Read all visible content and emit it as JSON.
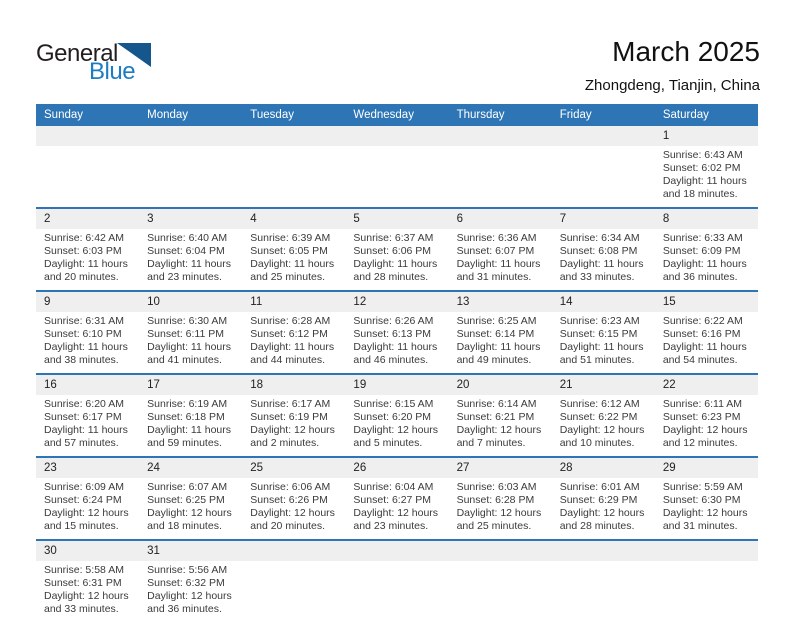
{
  "logo": {
    "general": "General",
    "blue": "Blue"
  },
  "header": {
    "title": "March 2025",
    "subtitle": "Zhongdeng, Tianjin, China"
  },
  "labels": {
    "sunrise": "Sunrise:",
    "sunset": "Sunset:",
    "daylight": "Daylight:"
  },
  "colors": {
    "header_blue": "#2E75B6",
    "band_gray": "#EFEFEF",
    "logo_blue": "#1E7CC2",
    "logo_triangle": "#15568D",
    "text_dark": "#3B3B3B"
  },
  "weekdays": [
    "Sunday",
    "Monday",
    "Tuesday",
    "Wednesday",
    "Thursday",
    "Friday",
    "Saturday"
  ],
  "weeks": [
    [
      null,
      null,
      null,
      null,
      null,
      null,
      {
        "day": "1",
        "sunrise": "6:43 AM",
        "sunset": "6:02 PM",
        "daylight": "11 hours and 18 minutes."
      }
    ],
    [
      {
        "day": "2",
        "sunrise": "6:42 AM",
        "sunset": "6:03 PM",
        "daylight": "11 hours and 20 minutes."
      },
      {
        "day": "3",
        "sunrise": "6:40 AM",
        "sunset": "6:04 PM",
        "daylight": "11 hours and 23 minutes."
      },
      {
        "day": "4",
        "sunrise": "6:39 AM",
        "sunset": "6:05 PM",
        "daylight": "11 hours and 25 minutes."
      },
      {
        "day": "5",
        "sunrise": "6:37 AM",
        "sunset": "6:06 PM",
        "daylight": "11 hours and 28 minutes."
      },
      {
        "day": "6",
        "sunrise": "6:36 AM",
        "sunset": "6:07 PM",
        "daylight": "11 hours and 31 minutes."
      },
      {
        "day": "7",
        "sunrise": "6:34 AM",
        "sunset": "6:08 PM",
        "daylight": "11 hours and 33 minutes."
      },
      {
        "day": "8",
        "sunrise": "6:33 AM",
        "sunset": "6:09 PM",
        "daylight": "11 hours and 36 minutes."
      }
    ],
    [
      {
        "day": "9",
        "sunrise": "6:31 AM",
        "sunset": "6:10 PM",
        "daylight": "11 hours and 38 minutes."
      },
      {
        "day": "10",
        "sunrise": "6:30 AM",
        "sunset": "6:11 PM",
        "daylight": "11 hours and 41 minutes."
      },
      {
        "day": "11",
        "sunrise": "6:28 AM",
        "sunset": "6:12 PM",
        "daylight": "11 hours and 44 minutes."
      },
      {
        "day": "12",
        "sunrise": "6:26 AM",
        "sunset": "6:13 PM",
        "daylight": "11 hours and 46 minutes."
      },
      {
        "day": "13",
        "sunrise": "6:25 AM",
        "sunset": "6:14 PM",
        "daylight": "11 hours and 49 minutes."
      },
      {
        "day": "14",
        "sunrise": "6:23 AM",
        "sunset": "6:15 PM",
        "daylight": "11 hours and 51 minutes."
      },
      {
        "day": "15",
        "sunrise": "6:22 AM",
        "sunset": "6:16 PM",
        "daylight": "11 hours and 54 minutes."
      }
    ],
    [
      {
        "day": "16",
        "sunrise": "6:20 AM",
        "sunset": "6:17 PM",
        "daylight": "11 hours and 57 minutes."
      },
      {
        "day": "17",
        "sunrise": "6:19 AM",
        "sunset": "6:18 PM",
        "daylight": "11 hours and 59 minutes."
      },
      {
        "day": "18",
        "sunrise": "6:17 AM",
        "sunset": "6:19 PM",
        "daylight": "12 hours and 2 minutes."
      },
      {
        "day": "19",
        "sunrise": "6:15 AM",
        "sunset": "6:20 PM",
        "daylight": "12 hours and 5 minutes."
      },
      {
        "day": "20",
        "sunrise": "6:14 AM",
        "sunset": "6:21 PM",
        "daylight": "12 hours and 7 minutes."
      },
      {
        "day": "21",
        "sunrise": "6:12 AM",
        "sunset": "6:22 PM",
        "daylight": "12 hours and 10 minutes."
      },
      {
        "day": "22",
        "sunrise": "6:11 AM",
        "sunset": "6:23 PM",
        "daylight": "12 hours and 12 minutes."
      }
    ],
    [
      {
        "day": "23",
        "sunrise": "6:09 AM",
        "sunset": "6:24 PM",
        "daylight": "12 hours and 15 minutes."
      },
      {
        "day": "24",
        "sunrise": "6:07 AM",
        "sunset": "6:25 PM",
        "daylight": "12 hours and 18 minutes."
      },
      {
        "day": "25",
        "sunrise": "6:06 AM",
        "sunset": "6:26 PM",
        "daylight": "12 hours and 20 minutes."
      },
      {
        "day": "26",
        "sunrise": "6:04 AM",
        "sunset": "6:27 PM",
        "daylight": "12 hours and 23 minutes."
      },
      {
        "day": "27",
        "sunrise": "6:03 AM",
        "sunset": "6:28 PM",
        "daylight": "12 hours and 25 minutes."
      },
      {
        "day": "28",
        "sunrise": "6:01 AM",
        "sunset": "6:29 PM",
        "daylight": "12 hours and 28 minutes."
      },
      {
        "day": "29",
        "sunrise": "5:59 AM",
        "sunset": "6:30 PM",
        "daylight": "12 hours and 31 minutes."
      }
    ],
    [
      {
        "day": "30",
        "sunrise": "5:58 AM",
        "sunset": "6:31 PM",
        "daylight": "12 hours and 33 minutes."
      },
      {
        "day": "31",
        "sunrise": "5:56 AM",
        "sunset": "6:32 PM",
        "daylight": "12 hours and 36 minutes."
      },
      null,
      null,
      null,
      null,
      null
    ]
  ]
}
